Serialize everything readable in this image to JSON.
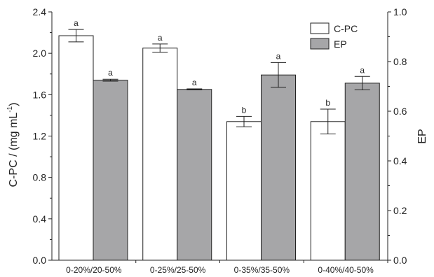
{
  "chart_data": {
    "type": "bar",
    "categories": [
      "0-20%/20-50%",
      "0-25%/25-50%",
      "0-35%/35-50%",
      "0-40%/40-50%"
    ],
    "series": [
      {
        "name": "C-PC",
        "axis": "left",
        "color": "#ffffff",
        "values": [
          2.17,
          2.05,
          1.34,
          1.34
        ],
        "errors": [
          0.06,
          0.04,
          0.05,
          0.12
        ],
        "letters": [
          "a",
          "a",
          "b",
          "b"
        ]
      },
      {
        "name": "EP",
        "axis": "right",
        "color": "#a6a6a8",
        "values": [
          0.725,
          0.688,
          0.746,
          0.713
        ],
        "errors": [
          0.004,
          0.002,
          0.05,
          0.027
        ],
        "letters": [
          "a",
          "a",
          "a",
          "a"
        ]
      }
    ],
    "ylabel": "C-PC / (mg mL",
    "ylabel_sup": "-1",
    "ylabel_close": ")",
    "y2label": "EP",
    "ylim": [
      0.0,
      2.4
    ],
    "y2lim": [
      0.0,
      1.0
    ],
    "yticks": [
      "0.0",
      "0.4",
      "0.8",
      "1.2",
      "1.6",
      "2.0",
      "2.4"
    ],
    "y2ticks": [
      "0.0",
      "0.2",
      "0.4",
      "0.6",
      "0.8",
      "1.0"
    ],
    "legend": {
      "position": "top-right",
      "entries": [
        "C-PC",
        "EP"
      ]
    },
    "grid": false
  }
}
